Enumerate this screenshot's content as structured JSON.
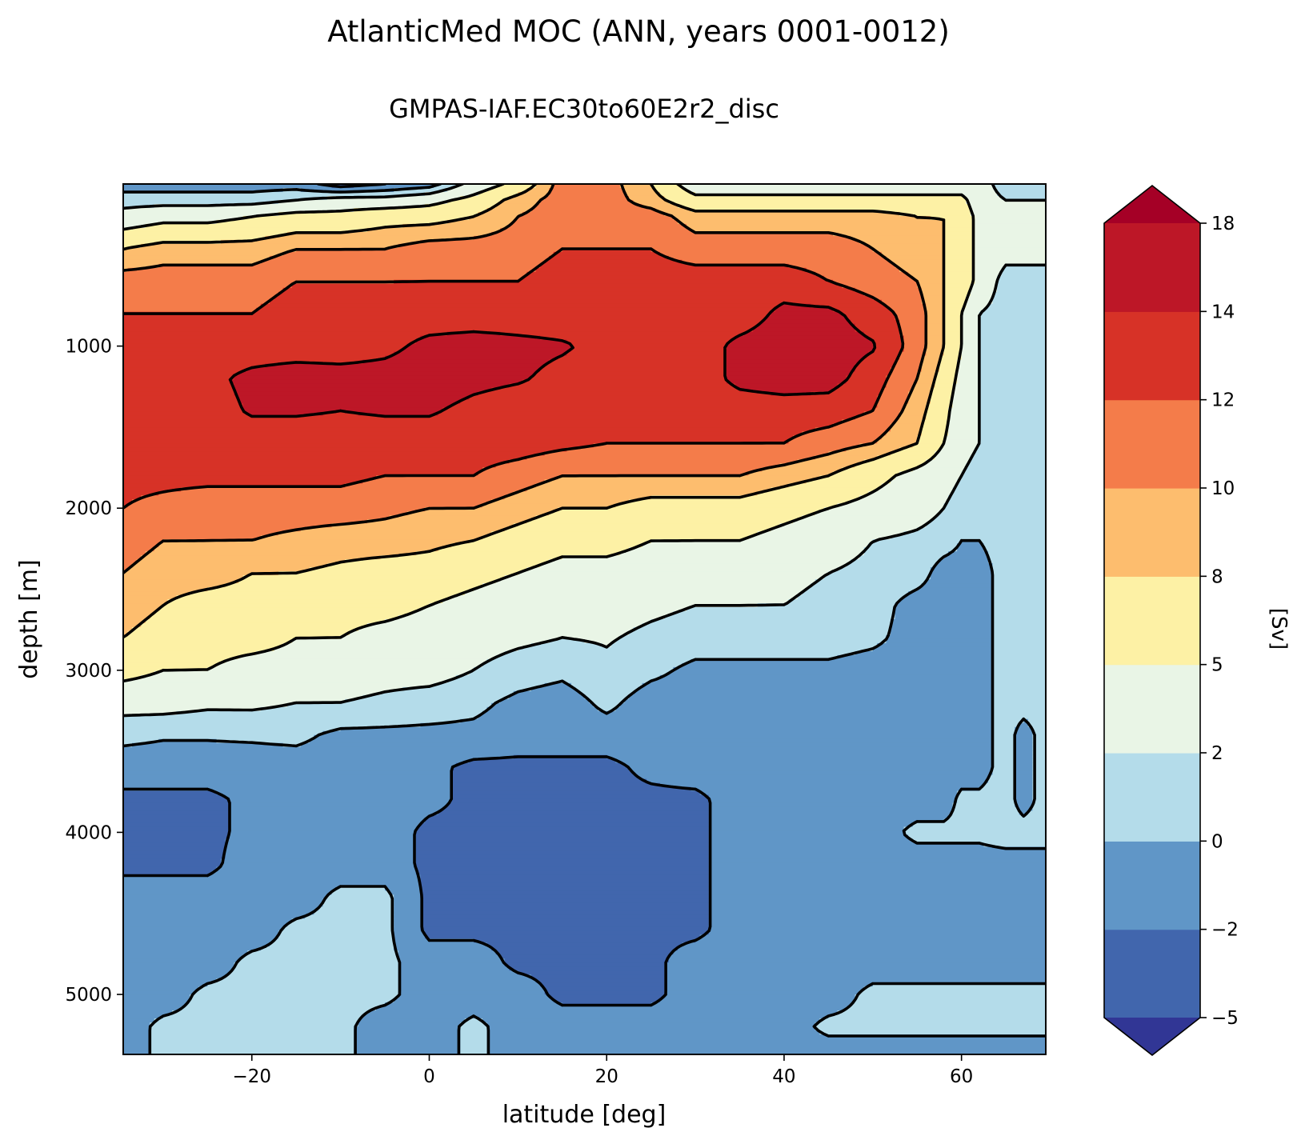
{
  "chart_data": {
    "type": "heatmap",
    "subtype": "filled-contour",
    "title": "AtlanticMed MOC (ANN, years 0001-0012)",
    "subtitle": "GMPAS-IAF.EC30to60E2r2_disc",
    "xlabel": "latitude [deg]",
    "ylabel": "depth [m]",
    "xlim": [
      -34.5,
      69.5
    ],
    "ylim": [
      5370,
      0
    ],
    "y_inverted": true,
    "x_ticks": [
      -20,
      0,
      20,
      40,
      60
    ],
    "x_tick_labels": [
      "−20",
      "0",
      "20",
      "40",
      "60"
    ],
    "y_ticks": [
      1000,
      2000,
      3000,
      4000,
      5000
    ],
    "y_tick_labels": [
      "1000",
      "2000",
      "3000",
      "4000",
      "5000"
    ],
    "contour_line_color": "#000000",
    "colorbar": {
      "label": "[Sv]",
      "levels": [
        -5,
        -2,
        0,
        2,
        5,
        8,
        10,
        12,
        14,
        18
      ],
      "tick_labels": [
        "−5",
        "−2",
        "0",
        "2",
        "5",
        "8",
        "10",
        "12",
        "14",
        "18"
      ],
      "colors": [
        "#4166ad",
        "#6096c7",
        "#b4dcea",
        "#e9f5e6",
        "#fdf1a5",
        "#fdbd6e",
        "#f47c4a",
        "#d73227",
        "#bd1727"
      ],
      "extend_low_color": "#313695",
      "extend_high_color": "#a50026"
    },
    "field": {
      "x": [
        -34.5,
        -30,
        -25,
        -20,
        -15,
        -10,
        -5,
        0,
        5,
        10,
        15,
        20,
        25,
        30,
        35,
        40,
        45,
        50,
        55,
        58,
        60,
        62,
        65,
        67,
        69.5
      ],
      "y": [
        0,
        100,
        200,
        400,
        600,
        800,
        1000,
        1200,
        1400,
        1600,
        1800,
        2000,
        2200,
        2400,
        2600,
        2800,
        3000,
        3200,
        3400,
        3600,
        3800,
        4000,
        4200,
        4400,
        4600,
        4800,
        5000,
        5200,
        5370
      ],
      "z": [
        [
          -1,
          -1,
          -1,
          -1,
          -1,
          -3,
          -2,
          -1,
          3,
          6,
          11,
          11,
          8,
          3,
          3,
          3,
          3,
          3,
          3,
          3,
          3,
          3,
          1,
          1,
          1
        ],
        [
          1,
          1,
          1,
          1,
          2,
          3,
          3,
          4,
          6,
          9,
          11,
          11,
          9,
          6,
          6,
          6,
          6,
          6,
          6,
          6,
          6,
          3,
          2,
          2,
          2
        ],
        [
          3,
          4,
          4,
          5,
          6,
          6,
          7,
          7,
          8,
          10,
          11,
          11,
          11,
          9,
          9,
          9,
          9,
          9,
          8,
          8,
          7,
          4,
          3,
          3,
          3
        ],
        [
          8,
          9,
          9,
          9,
          10,
          10,
          10,
          11,
          11,
          11,
          12,
          12,
          12,
          11,
          11,
          11,
          11,
          10,
          9,
          8,
          7,
          4,
          3,
          3,
          3
        ],
        [
          11,
          11,
          11,
          11,
          12,
          12,
          12,
          12,
          12,
          12,
          13,
          13,
          13,
          13,
          13,
          13,
          12,
          11,
          10,
          8,
          7,
          4,
          1,
          1,
          1
        ],
        [
          12,
          12,
          12,
          12,
          13,
          13,
          13,
          13,
          13,
          13,
          13,
          13,
          13,
          13,
          13,
          14.5,
          14.5,
          13,
          11,
          8,
          5,
          2,
          1,
          1,
          1
        ],
        [
          13,
          13,
          13,
          13,
          13,
          13,
          13.5,
          14.5,
          14.8,
          14.5,
          14.2,
          13.5,
          13,
          13,
          14.5,
          15,
          15,
          14.2,
          11,
          8,
          5,
          2,
          1,
          1,
          1
        ],
        [
          13,
          13,
          13.5,
          14.5,
          15,
          14.8,
          14.8,
          15,
          14.5,
          14.2,
          13.5,
          13,
          13,
          13,
          14.5,
          15,
          14.8,
          13,
          10,
          7,
          4,
          2,
          1,
          1,
          1
        ],
        [
          13,
          13,
          13.2,
          14.2,
          14.2,
          14,
          14.2,
          14.2,
          13.5,
          13,
          13,
          13,
          13,
          13,
          13,
          13,
          13,
          12,
          9,
          6,
          3,
          2,
          1,
          1,
          1
        ],
        [
          13,
          13,
          13,
          13,
          13,
          13,
          13,
          13,
          13,
          13,
          12.5,
          12,
          12,
          12,
          12,
          12,
          11,
          10,
          8,
          5,
          3,
          2,
          1,
          1,
          1
        ],
        [
          12.5,
          12.5,
          12.5,
          12.5,
          12.5,
          12.5,
          12,
          12,
          12,
          11,
          10,
          10,
          10,
          10,
          10,
          9,
          8,
          6,
          4,
          3,
          2,
          1,
          1,
          1,
          1
        ],
        [
          12,
          11.5,
          11,
          11,
          11,
          11,
          10.5,
          10,
          10,
          9,
          8,
          8,
          7,
          7,
          7,
          6,
          5,
          4,
          3,
          2,
          1,
          1,
          1,
          1,
          1
        ],
        [
          11,
          10,
          10,
          10,
          9.5,
          9,
          9,
          8.5,
          8,
          7,
          6,
          6,
          5,
          5,
          5,
          4,
          3,
          2,
          1.5,
          1,
          0,
          0,
          1,
          1,
          1
        ],
        [
          10,
          9,
          9,
          8,
          8,
          7.5,
          7,
          7,
          6,
          5,
          4,
          4,
          3.5,
          3,
          3,
          2.5,
          2,
          1.5,
          1,
          -1,
          -1,
          -1,
          1,
          1,
          1
        ],
        [
          9,
          8,
          7,
          7,
          6.5,
          6,
          6,
          5,
          4,
          3,
          3,
          3,
          2.5,
          2,
          2,
          2,
          1.5,
          1,
          -1,
          -1,
          -1,
          -1,
          1,
          1,
          1
        ],
        [
          8,
          7,
          6,
          6,
          5,
          5,
          4,
          3.5,
          3,
          2.5,
          2,
          2.2,
          1.5,
          1,
          1,
          1,
          1,
          0.5,
          -1,
          -1,
          -1,
          -1,
          1,
          1,
          1
        ],
        [
          6,
          5,
          5,
          4,
          4,
          3.5,
          3,
          3,
          2,
          1,
          0.5,
          1.5,
          0.5,
          -0.5,
          -0.5,
          -0.5,
          -0.5,
          -1,
          -1,
          -1,
          -1,
          -1,
          1,
          1,
          1
        ],
        [
          3,
          3,
          2.5,
          2.5,
          2,
          2,
          1.5,
          1,
          0.5,
          -0.5,
          -1,
          0.5,
          -1,
          -1,
          -1,
          -1,
          -1,
          -1,
          -1,
          -1,
          -1,
          -1,
          1,
          1,
          1
        ],
        [
          0.5,
          0.2,
          0.2,
          0.3,
          0.5,
          -0.5,
          -0.5,
          -0.5,
          -0.5,
          -1,
          -1,
          -1,
          -1,
          -1,
          -1,
          -1,
          -1,
          -1,
          -1,
          -1,
          -1,
          -1,
          1,
          -1,
          1
        ],
        [
          -1,
          -1,
          -1,
          -1,
          -1,
          -1,
          -1,
          -1.5,
          -2.5,
          -2.5,
          -2.5,
          -2.5,
          -1.5,
          -1,
          -1,
          -1,
          -1,
          -1,
          -1,
          -1,
          -1,
          -1,
          1,
          -1,
          1
        ],
        [
          -2.5,
          -2.5,
          -2.5,
          -1.5,
          -1,
          -1,
          -1,
          -1.5,
          -2.5,
          -2.5,
          -2.5,
          -2.5,
          -2.5,
          -2.5,
          -1,
          -1,
          -1,
          -1,
          -1,
          -1,
          0.5,
          0.5,
          1,
          -1,
          1
        ],
        [
          -2.5,
          -2.5,
          -2.5,
          -1.5,
          -1,
          -1,
          -1,
          -2.5,
          -2.5,
          -2.5,
          -2.5,
          -2.5,
          -2.5,
          -2.5,
          -1,
          -1,
          -1,
          -1,
          0.5,
          0.5,
          0.5,
          0.5,
          1,
          1,
          1
        ],
        [
          -2.5,
          -2.5,
          -2.5,
          -1,
          -1,
          -1,
          -1,
          -2.5,
          -2.5,
          -2.5,
          -3,
          -2.5,
          -2.5,
          -2.5,
          -1,
          -1,
          -1,
          -1,
          -1,
          -1,
          -1,
          -1,
          -1,
          -1,
          -1
        ],
        [
          -1,
          -1,
          -1,
          -1,
          -1,
          0.5,
          0.5,
          -2.5,
          -2.5,
          -2.5,
          -2.5,
          -2.5,
          -2.5,
          -2.5,
          -1,
          -1,
          -1,
          -1,
          -1,
          -1,
          -1,
          -1,
          -1,
          -1,
          -1
        ],
        [
          -1,
          -1,
          -1,
          -1,
          0.5,
          0.5,
          0.5,
          -2.5,
          -2.5,
          -2.5,
          -2.5,
          -2.5,
          -2.5,
          -2.5,
          -1,
          -1,
          -1,
          -1,
          -1,
          -1,
          -1,
          -1,
          -1,
          -1,
          -1
        ],
        [
          -1,
          -1,
          -1,
          0.5,
          0.5,
          0.5,
          0.5,
          -1,
          -1,
          -2.5,
          -2.5,
          -2.5,
          -2.5,
          -1,
          -1,
          -1,
          -1,
          -1,
          -1,
          -1,
          -1,
          -1,
          -1,
          -1,
          -1
        ],
        [
          -1,
          -1,
          0.5,
          0.5,
          0.5,
          0.5,
          0.5,
          -1,
          -1,
          -1,
          -2.5,
          -2.5,
          -2.5,
          -1,
          -1,
          -1,
          -1,
          0.5,
          0.5,
          0.5,
          0.5,
          0.5,
          0.5,
          0.5,
          0.5
        ],
        [
          -1,
          0.5,
          0.5,
          0.5,
          0.5,
          0.5,
          -1,
          -1,
          0.5,
          -1,
          -1,
          -1,
          -1,
          -1,
          -1,
          -1,
          0.5,
          0.5,
          0.5,
          0.5,
          0.5,
          0.5,
          0.5,
          0.5,
          0.5
        ],
        [
          -1,
          0.5,
          0.5,
          0.5,
          0.5,
          0.5,
          -1,
          -1,
          0.5,
          -1,
          -1,
          -1,
          -1,
          -1,
          -1,
          -1,
          -1,
          -1,
          -1,
          -1,
          -1,
          -1,
          -1,
          -1,
          -1
        ]
      ]
    }
  }
}
